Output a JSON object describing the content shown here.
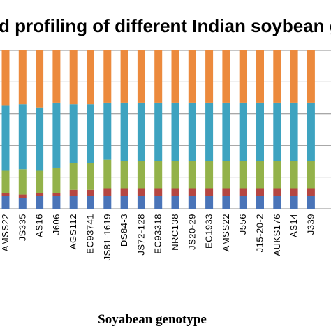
{
  "chart_data": {
    "type": "bar",
    "stacked": true,
    "title": "d profiling of different Indian soybean g",
    "xlabel": "Soyabean genotype",
    "ylabel": "",
    "categories": [
      "AMSS22",
      "JS335",
      "AS16",
      "J606",
      "AGS112",
      "EC93741",
      "JS81-1619",
      "DS84-3",
      "JS72-128",
      "EC93318",
      "NRC138",
      "JS20-29",
      "EC1933",
      "AMSS22",
      "J556",
      "J15-20-2",
      "AUKS176",
      "AS14",
      "J339"
    ],
    "ylim": [
      0,
      100
    ],
    "grid": true,
    "legend": "none",
    "series": [
      {
        "color": "#4a74b8",
        "values": [
          8,
          7,
          8,
          8,
          8,
          8,
          8,
          8,
          8,
          8,
          8,
          8,
          8,
          8,
          8,
          8,
          8,
          8,
          8
        ]
      },
      {
        "color": "#b54642",
        "values": [
          2,
          2,
          2,
          2,
          4,
          4,
          5,
          5,
          5,
          5,
          5,
          5,
          5,
          5,
          5,
          5,
          5,
          5,
          5
        ]
      },
      {
        "color": "#93b24a",
        "values": [
          14,
          16,
          14,
          16,
          17,
          17,
          18,
          17,
          17,
          17,
          17,
          17,
          17,
          17,
          17,
          17,
          17,
          17,
          17
        ]
      },
      {
        "color": "#3ea3c0",
        "values": [
          41,
          41,
          40,
          41,
          37,
          37,
          36,
          37,
          37,
          37,
          37,
          37,
          37,
          37,
          37,
          37,
          37,
          37,
          37
        ]
      },
      {
        "color": "#ec8a3d",
        "values": [
          35,
          34,
          36,
          33,
          34,
          34,
          33,
          33,
          33,
          33,
          33,
          33,
          33,
          33,
          33,
          33,
          33,
          33,
          33
        ]
      }
    ]
  }
}
